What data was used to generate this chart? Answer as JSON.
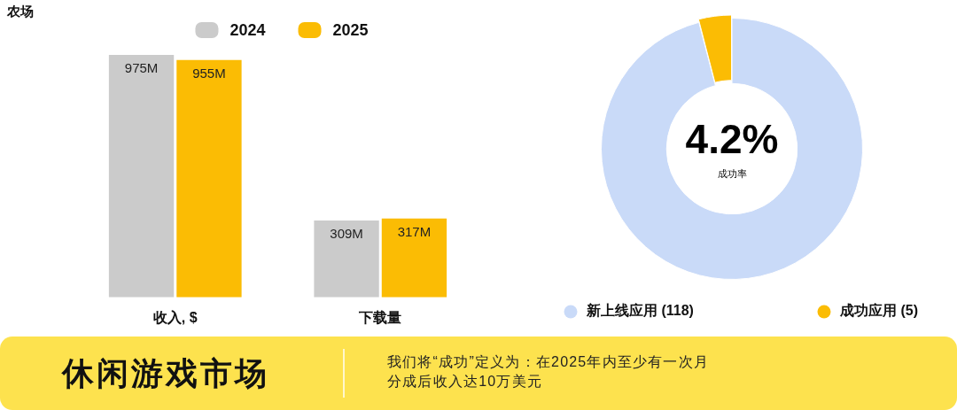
{
  "chart_data": [
    {
      "type": "bar",
      "title": "农场",
      "categories": [
        "收入, $",
        "下载量"
      ],
      "series": [
        {
          "name": "2024",
          "color": "#cbcbcb",
          "values": [
            975,
            309
          ],
          "value_labels": [
            "975M",
            "309M"
          ]
        },
        {
          "name": "2025",
          "color": "#fbbc04",
          "values": [
            955,
            317
          ],
          "value_labels": [
            "955M",
            "317M"
          ]
        }
      ],
      "legend": "top",
      "tick_labels": "x"
    },
    {
      "type": "donut",
      "categories": [
        "新上线应用 (118)",
        "成功应用 (5)"
      ],
      "values": [
        118,
        5
      ],
      "colors": [
        "#c9daf8",
        "#fbbc04"
      ],
      "annotations": [
        "4.2%",
        "成功率"
      ],
      "legend": "bottom"
    },
    {
      "type": "other",
      "title": "休闲游戏市场",
      "annotations": [
        "我们将“成功”定义为：在2025年内至少有一次月分成后收入达10万美元"
      ]
    }
  ]
}
